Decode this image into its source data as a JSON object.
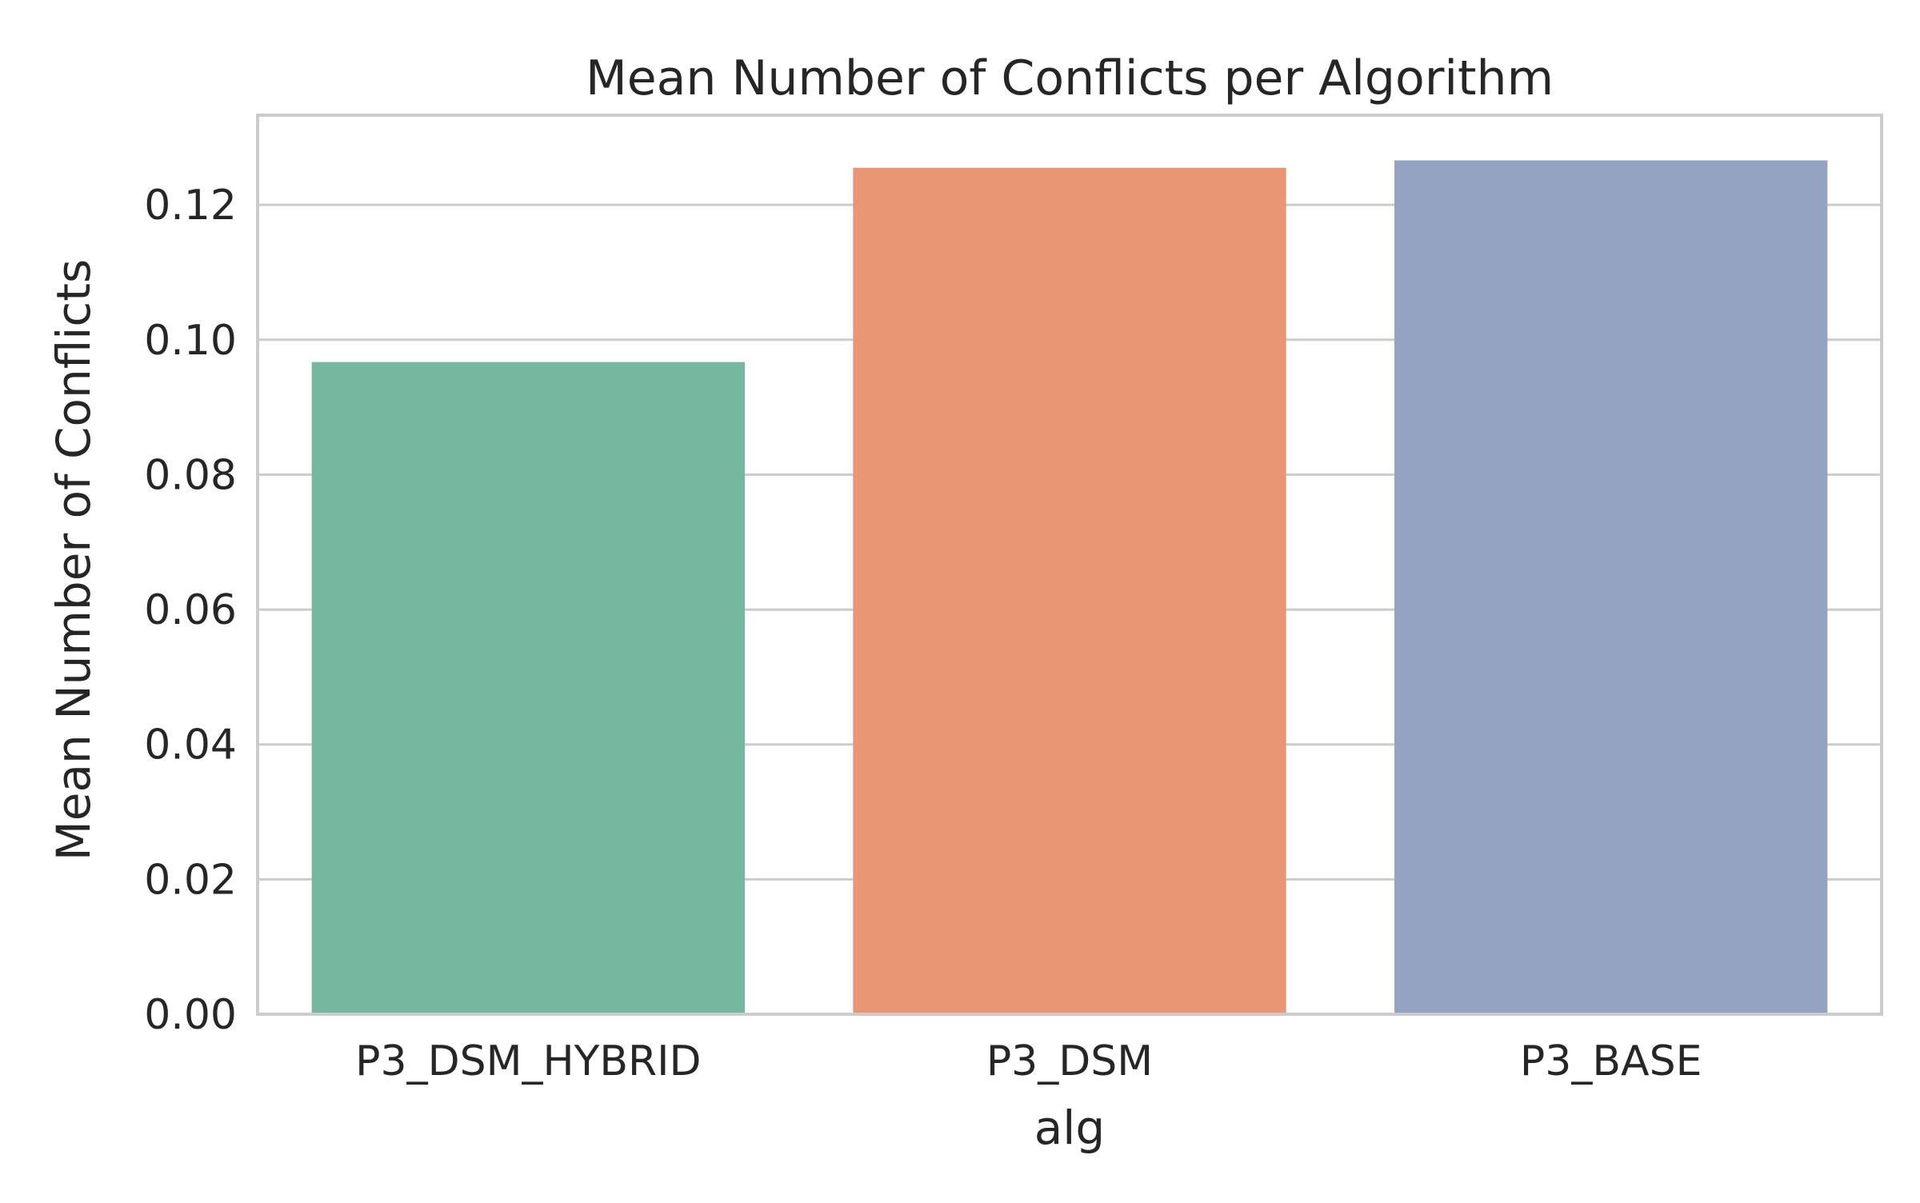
{
  "chart_data": {
    "type": "bar",
    "title": "Mean Number of Conflicts per Algorithm",
    "xlabel": "alg",
    "ylabel": "Mean Number of Conflicts",
    "categories": [
      "P3_DSM_HYBRID",
      "P3_DSM",
      "P3_BASE"
    ],
    "values": [
      0.0967,
      0.1255,
      0.1266
    ],
    "colors": [
      "#76b7a0",
      "#e99675",
      "#95a3c2"
    ],
    "ylim": [
      0,
      0.1333
    ],
    "yticks": [
      0.0,
      0.02,
      0.04,
      0.06,
      0.08,
      0.1,
      0.12
    ],
    "ytick_labels": [
      "0.00",
      "0.02",
      "0.04",
      "0.06",
      "0.08",
      "0.10",
      "0.12"
    ],
    "grid": true,
    "grid_axis": "y",
    "legend": "none"
  }
}
